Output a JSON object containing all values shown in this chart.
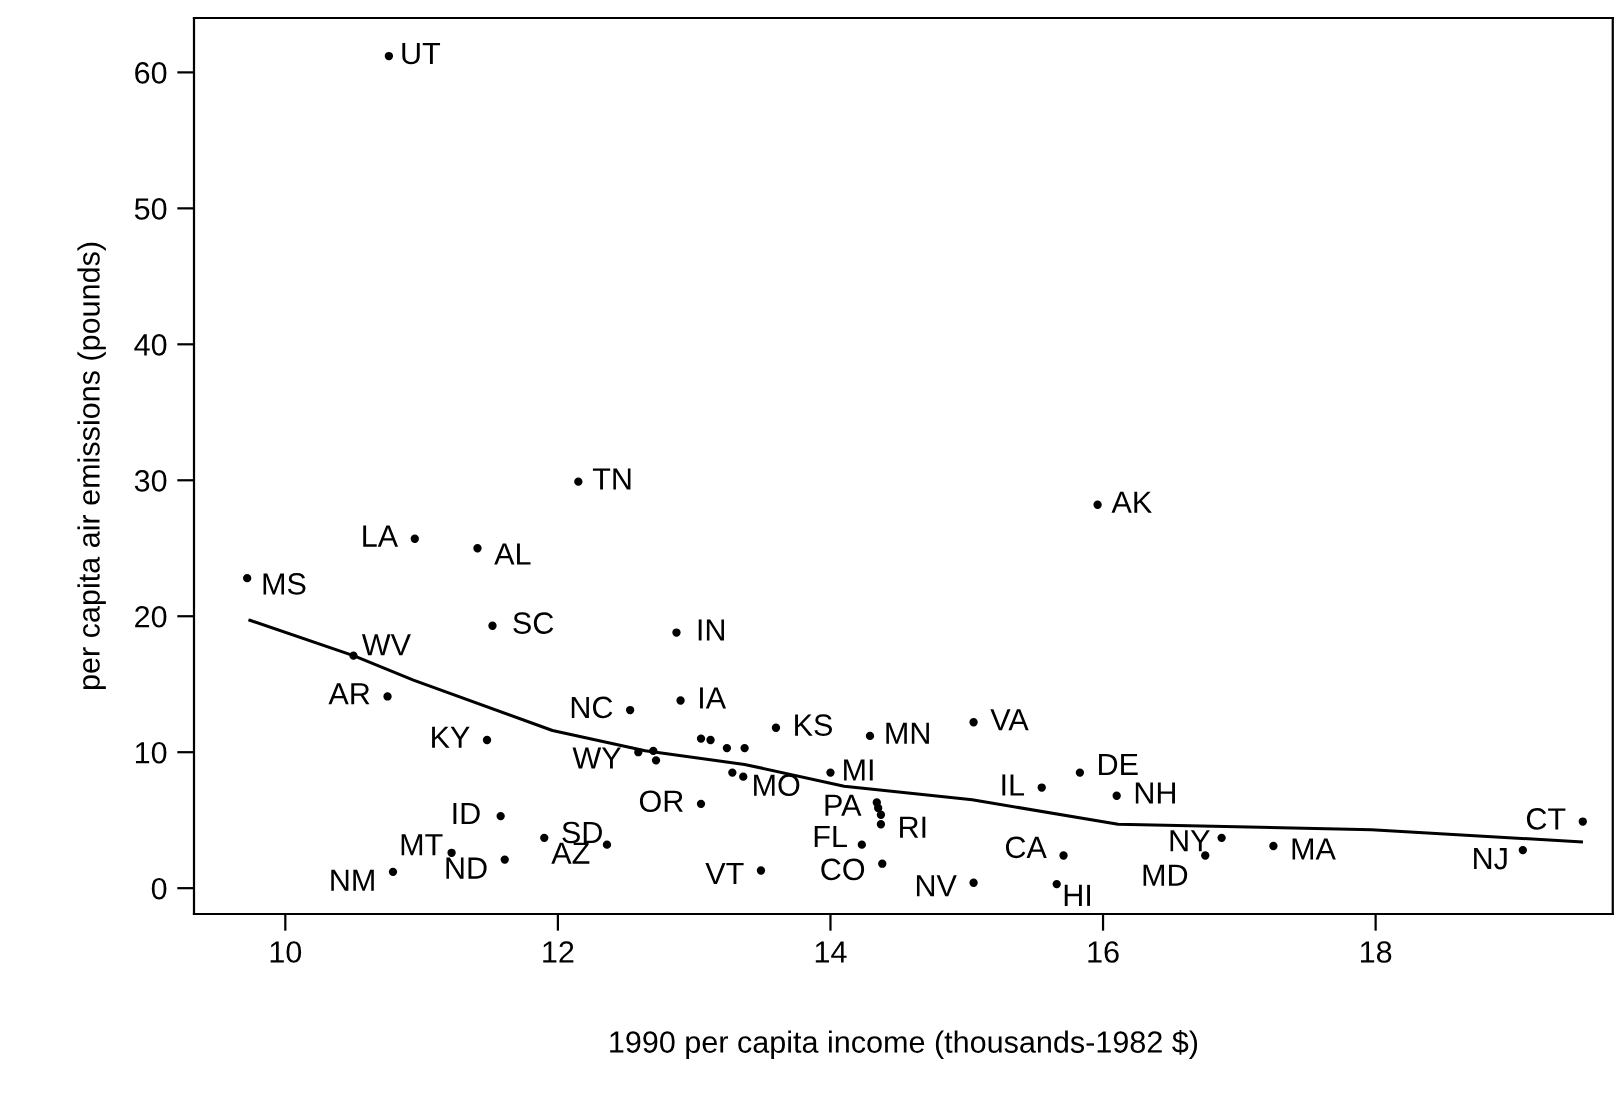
{
  "chart_data": {
    "type": "scatter",
    "xlabel": "1990 per capita income (thousands-1982 $)",
    "ylabel": "per capita air emissions (pounds)",
    "xlim": [
      9.33,
      19.74
    ],
    "ylim": [
      -1.9,
      64
    ],
    "xticks": [
      10,
      12,
      14,
      16,
      18
    ],
    "yticks": [
      0,
      10,
      20,
      30,
      40,
      50,
      60
    ],
    "grid": false,
    "marker": "circle",
    "series": [
      {
        "color": "#000000",
        "x": [
          10.76,
          12.15,
          10.95,
          11.41,
          9.72,
          11.52,
          12.87,
          10.5,
          10.75,
          12.53,
          12.9,
          11.48,
          13.6,
          14.29,
          15.05,
          12.59,
          12.7,
          12.72,
          13.05,
          13.12,
          13.24,
          13.37,
          13.28,
          13.36,
          14.0,
          13.05,
          14.34,
          14.35,
          14.37,
          14.37,
          15.83,
          15.55,
          16.1,
          19.52,
          19.08,
          17.25,
          16.87,
          16.75,
          15.71,
          15.66,
          15.05,
          14.38,
          14.23,
          13.49,
          12.36,
          11.9,
          11.58,
          11.61,
          11.22,
          10.79,
          15.96
        ],
        "values": [
          61.2,
          29.9,
          25.7,
          25.0,
          22.8,
          19.3,
          18.8,
          17.1,
          14.1,
          13.1,
          13.8,
          10.9,
          11.8,
          11.2,
          12.2,
          10.0,
          10.1,
          9.4,
          11.0,
          10.9,
          10.3,
          10.3,
          8.5,
          8.2,
          8.5,
          6.2,
          6.3,
          5.9,
          5.4,
          4.7,
          8.5,
          7.4,
          6.8,
          4.9,
          2.8,
          3.1,
          3.7,
          2.4,
          2.4,
          0.3,
          0.4,
          1.8,
          3.2,
          1.3,
          3.2,
          3.7,
          5.3,
          2.1,
          2.6,
          1.2,
          28.2
        ]
      },
      {
        "type": "line",
        "color": "#000000",
        "marker": "none",
        "x": [
          9.74,
          10.5,
          10.94,
          11.96,
          12.64,
          13.37,
          14.1,
          15.04,
          16.11,
          17.97,
          19.51
        ],
        "values": [
          19.7,
          17.1,
          15.3,
          11.6,
          10.1,
          9.1,
          7.5,
          6.5,
          4.7,
          4.3,
          3.4
        ]
      }
    ],
    "annotations": [
      {
        "text": "UT",
        "x": 10.76,
        "y": 61.2
      },
      {
        "text": "TN",
        "x": 12.15,
        "y": 29.9
      },
      {
        "text": "LA",
        "x": 10.95,
        "y": 25.7
      },
      {
        "text": "AL",
        "x": 11.41,
        "y": 25.0
      },
      {
        "text": "MS",
        "x": 9.72,
        "y": 22.8
      },
      {
        "text": "SC",
        "x": 11.52,
        "y": 19.3
      },
      {
        "text": "IN",
        "x": 12.87,
        "y": 18.8
      },
      {
        "text": "WV",
        "x": 10.5,
        "y": 17.1
      },
      {
        "text": "AR",
        "x": 10.75,
        "y": 14.1
      },
      {
        "text": "NC",
        "x": 12.53,
        "y": 13.1
      },
      {
        "text": "IA",
        "x": 12.9,
        "y": 13.8
      },
      {
        "text": "KY",
        "x": 11.48,
        "y": 10.9
      },
      {
        "text": "KS",
        "x": 13.6,
        "y": 11.8
      },
      {
        "text": "MN",
        "x": 14.29,
        "y": 11.2
      },
      {
        "text": "VA",
        "x": 15.05,
        "y": 12.2
      },
      {
        "text": "WY",
        "x": 12.59,
        "y": 10.0
      },
      {
        "text": "MO",
        "x": 13.36,
        "y": 8.2
      },
      {
        "text": "MI",
        "x": 14.0,
        "y": 8.5
      },
      {
        "text": "OR",
        "x": 13.05,
        "y": 6.2
      },
      {
        "text": "PA",
        "x": 14.35,
        "y": 5.9
      },
      {
        "text": "RI",
        "x": 14.37,
        "y": 4.7
      },
      {
        "text": "DE",
        "x": 15.83,
        "y": 8.5
      },
      {
        "text": "IL",
        "x": 15.55,
        "y": 7.4
      },
      {
        "text": "NH",
        "x": 16.1,
        "y": 6.8
      },
      {
        "text": "CT",
        "x": 19.52,
        "y": 4.9
      },
      {
        "text": "NJ",
        "x": 19.08,
        "y": 2.8
      },
      {
        "text": "MA",
        "x": 17.25,
        "y": 3.1
      },
      {
        "text": "NY",
        "x": 16.87,
        "y": 3.7
      },
      {
        "text": "MD",
        "x": 16.75,
        "y": 2.4
      },
      {
        "text": "CA",
        "x": 15.71,
        "y": 2.4
      },
      {
        "text": "HI",
        "x": 15.66,
        "y": 0.3
      },
      {
        "text": "NV",
        "x": 15.05,
        "y": 0.4
      },
      {
        "text": "CO",
        "x": 14.38,
        "y": 1.8
      },
      {
        "text": "FL",
        "x": 14.23,
        "y": 3.2
      },
      {
        "text": "VT",
        "x": 13.49,
        "y": 1.3
      },
      {
        "text": "AZ",
        "x": 12.36,
        "y": 3.2
      },
      {
        "text": "SD",
        "x": 11.9,
        "y": 3.7
      },
      {
        "text": "ID",
        "x": 11.58,
        "y": 5.3
      },
      {
        "text": "ND",
        "x": 11.61,
        "y": 2.1
      },
      {
        "text": "MT",
        "x": 11.22,
        "y": 2.6
      },
      {
        "text": "NM",
        "x": 10.79,
        "y": 1.2
      },
      {
        "text": "AK",
        "x": 15.96,
        "y": 28.2
      }
    ]
  }
}
